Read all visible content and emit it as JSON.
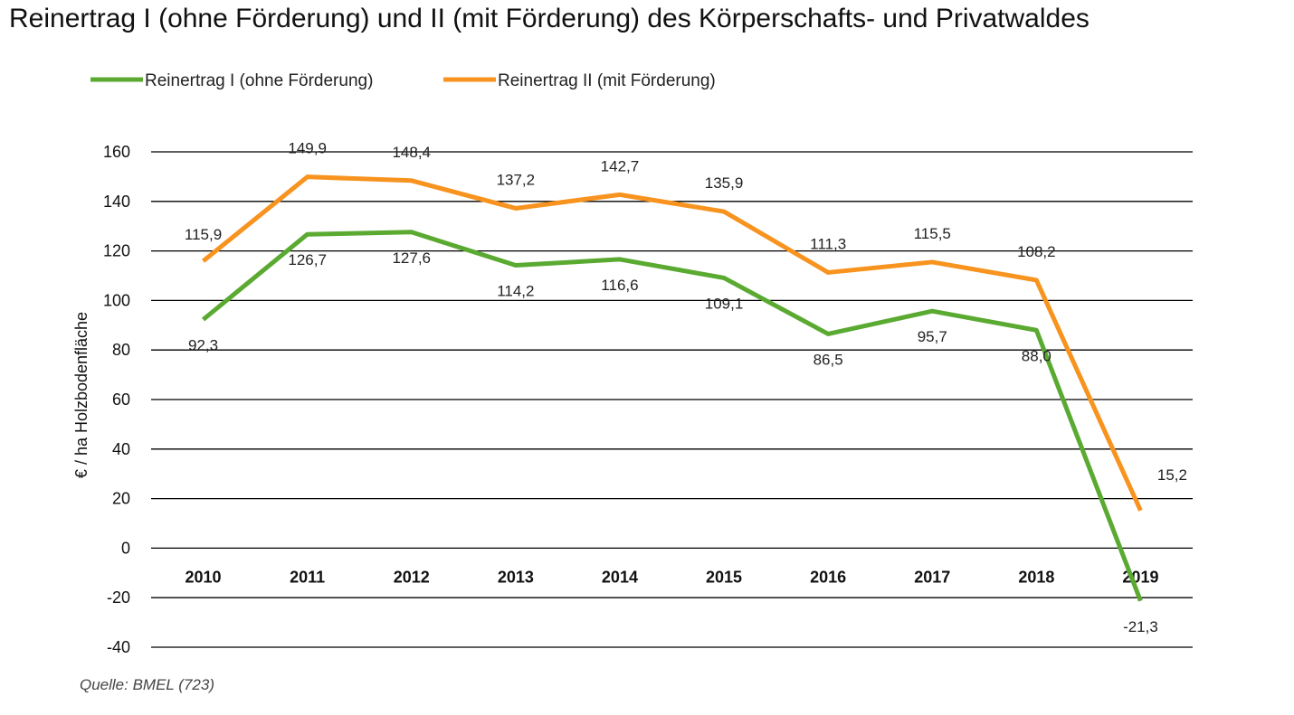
{
  "chart_data": {
    "type": "line",
    "title": "Reinertrag I (ohne Förderung) und II (mit Förderung) des Körperschafts- und Privatwaldes",
    "ylabel": "€ / ha  Holzbodenfläche",
    "xlabel": "",
    "source": "Quelle: BMEL (723)",
    "categories": [
      "2010",
      "2011",
      "2012",
      "2013",
      "2014",
      "2015",
      "2016",
      "2017",
      "2018",
      "2019"
    ],
    "ylim": [
      -40,
      160
    ],
    "yticks": [
      -40,
      -20,
      0,
      20,
      40,
      60,
      80,
      100,
      120,
      140,
      160
    ],
    "grid": true,
    "legend_position": "top-left",
    "series": [
      {
        "name": "Reinertrag I (ohne Förderung)",
        "color": "#5aaa32",
        "values": [
          92.3,
          126.7,
          127.6,
          114.2,
          116.6,
          109.1,
          86.5,
          95.7,
          88.0,
          -21.3
        ],
        "labels": [
          "92,3",
          "126,7",
          "127,6",
          "114,2",
          "116,6",
          "109,1",
          "86,5",
          "95,7",
          "88,0",
          "-21,3"
        ]
      },
      {
        "name": "Reinertrag II (mit Förderung)",
        "color": "#f7931e",
        "values": [
          115.9,
          149.9,
          148.4,
          137.2,
          142.7,
          135.9,
          111.3,
          115.5,
          108.2,
          15.2
        ],
        "labels": [
          "115,9",
          "149,9",
          "148,4",
          "137,2",
          "142,7",
          "135,9",
          "111,3",
          "115,5",
          "108,2",
          "15,2"
        ]
      }
    ]
  }
}
